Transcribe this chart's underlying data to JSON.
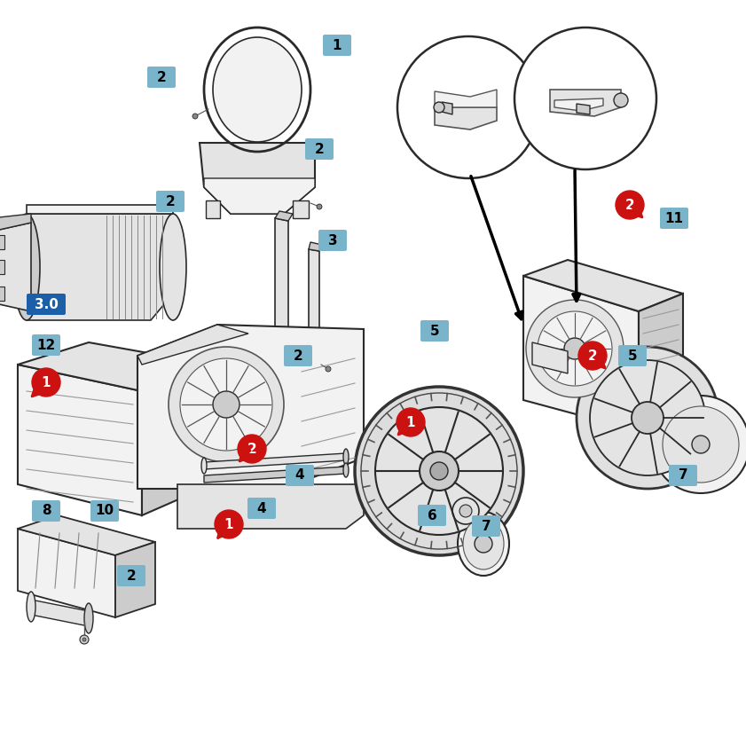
{
  "bg_color": "#ffffff",
  "label_bg": "#7ab4ca",
  "label_bg_dark": "#1a5fa8",
  "label_red": "#cc1111",
  "figsize": [
    8.41,
    8.41
  ],
  "dpi": 100,
  "line_color": "#2a2a2a",
  "line_color2": "#555555",
  "fill_light": "#f2f2f2",
  "fill_mid": "#e4e4e4",
  "fill_dark": "#cccccc"
}
